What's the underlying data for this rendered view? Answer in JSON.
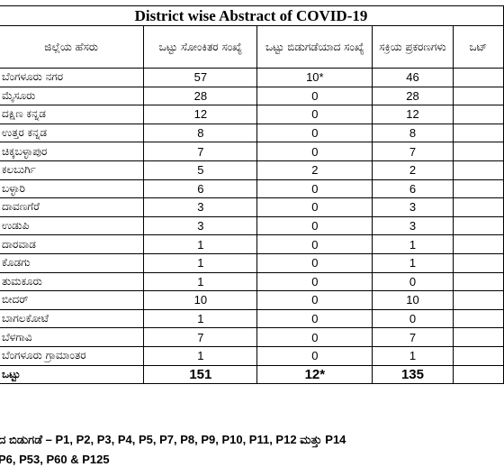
{
  "title": "District wise Abstract of COVID-19",
  "table": {
    "headers": [
      "ಜಿಲ್ಲೆಯ ಹೆಸರು",
      "ಒಟ್ಟು ಸೋಂಕಿತರ ಸಂಖ್ಯೆ",
      "ಒಟ್ಟು ಬಿಡುಗಡೆಯಾದ ಸಂಖ್ಯೆ",
      "ಸಕ್ರಿಯ ಪ್ರಕರಣಗಳು",
      "ಒಟ್"
    ],
    "rows": [
      [
        "ಬೆಂಗಳೂರು ನಗರ",
        "57",
        "10*",
        "46"
      ],
      [
        "ಮೈಸೂರು",
        "28",
        "0",
        "28"
      ],
      [
        "ದಕ್ಷಿಣ ಕನ್ನಡ",
        "12",
        "0",
        "12"
      ],
      [
        "ಉತ್ತರ ಕನ್ನಡ",
        "8",
        "0",
        "8"
      ],
      [
        "ಚಿಕ್ಕಬಳ್ಳಾಪುರ",
        "7",
        "0",
        "7"
      ],
      [
        "ಕಲಬುರ್ಗಿ",
        "5",
        "2",
        "2"
      ],
      [
        "ಬಳ್ಳಾರಿ",
        "6",
        "0",
        "6"
      ],
      [
        "ದಾವಣಗೆರೆ",
        "3",
        "0",
        "3"
      ],
      [
        "ಉಡುಪಿ",
        "3",
        "0",
        "3"
      ],
      [
        "ದಾರವಾಡ",
        "1",
        "0",
        "1"
      ],
      [
        "ಕೊಡಗು",
        "1",
        "0",
        "1"
      ],
      [
        "ತುಮಕೂರು",
        "1",
        "0",
        "0"
      ],
      [
        "ಬೀದರ್",
        "10",
        "0",
        "10"
      ],
      [
        "ಬಾಗಲಕೋಟೆ",
        "1",
        "0",
        "0"
      ],
      [
        "ಬೆಳಗಾವಿ",
        "7",
        "0",
        "7"
      ],
      [
        "ಬೆಂಗಳೂರು ಗ್ರಾಮಾಂತರ",
        "1",
        "0",
        "1"
      ]
    ],
    "total": [
      "ಒಟ್ಟು",
      "151",
      "12*",
      "135"
    ]
  },
  "notes": [
    "ದ ಬಿಡುಗಡೆ – P1, P2, P3, P4, P5, P7, P8, P9, P10, P11, P12 ಮತ್ತು P14",
    "P6, P53, P60 & P125"
  ]
}
